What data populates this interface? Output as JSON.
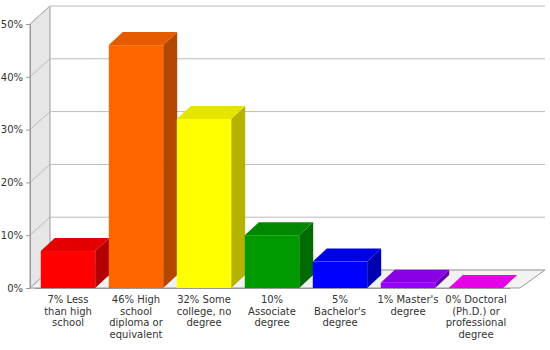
{
  "chart_data": {
    "type": "bar",
    "categories": [
      "7% Less than high school",
      "46% High school diploma or equivalent",
      "32% Some college, no degree",
      "10% Associate degree",
      "5% Bachelor's degree",
      "1% Master's degree",
      "0% Doctoral (Ph.D.) or professional degree"
    ],
    "values": [
      7,
      46,
      32,
      10,
      5,
      1,
      0
    ],
    "colors": [
      "#ff0000",
      "#ff6600",
      "#ffff00",
      "#009900",
      "#0000ff",
      "#9900ff",
      "#ff00ff"
    ],
    "ylim": [
      0,
      50
    ],
    "yticks": [
      {
        "value": 0,
        "label": "0%"
      },
      {
        "value": 10,
        "label": "10%"
      },
      {
        "value": 20,
        "label": "20%"
      },
      {
        "value": 30,
        "label": "30%"
      },
      {
        "value": 40,
        "label": "40%"
      },
      {
        "value": 50,
        "label": "50%"
      }
    ],
    "grid": true
  }
}
